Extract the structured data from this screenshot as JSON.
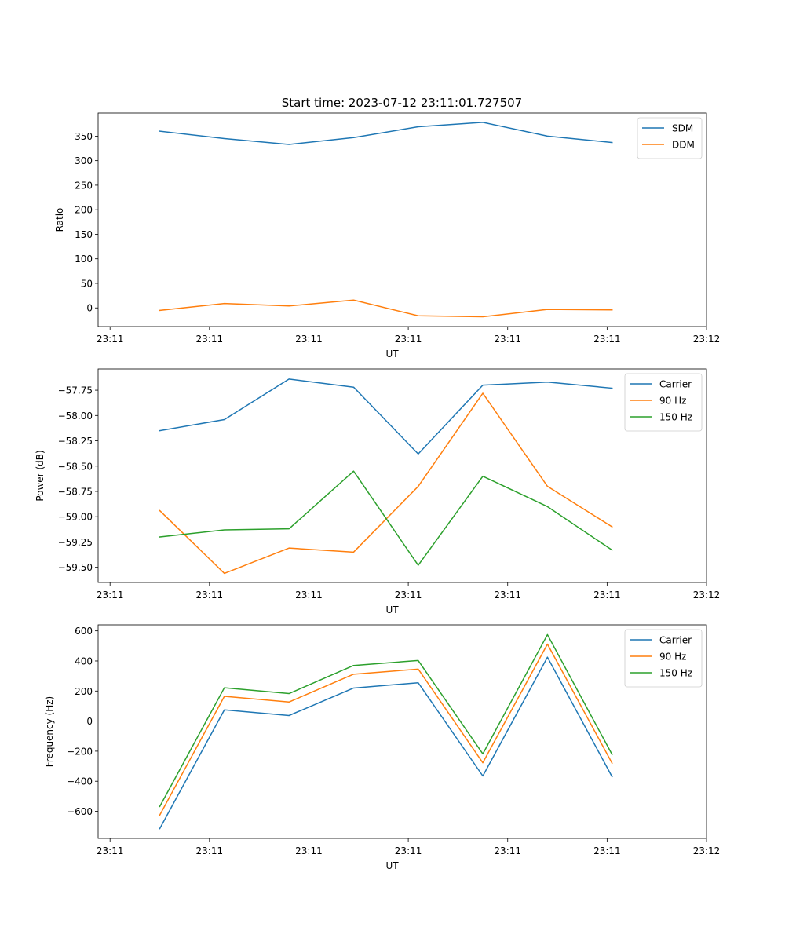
{
  "figure_title": "Start time: 2023-07-12 23:11:01.727507",
  "chart_data": [
    {
      "type": "line",
      "title": "Start time: 2023-07-12 23:11:01.727507",
      "xlabel": "UT",
      "ylabel": "Ratio",
      "x": [
        0.5,
        1.15,
        1.8,
        2.45,
        3.1,
        3.75,
        4.4,
        5.05
      ],
      "xlim": [
        -0.12,
        6.0
      ],
      "xticks": [
        0,
        1,
        2,
        3,
        4,
        5,
        6
      ],
      "xtick_labels": [
        "23:11",
        "23:11",
        "23:11",
        "23:11",
        "23:11",
        "23:11",
        "23:12"
      ],
      "ylim": [
        -38,
        397
      ],
      "yticks": [
        0,
        50,
        100,
        150,
        200,
        250,
        300,
        350
      ],
      "ytick_labels": [
        "0",
        "50",
        "100",
        "150",
        "200",
        "250",
        "300",
        "350"
      ],
      "legend": "top-right",
      "series": [
        {
          "name": "SDM",
          "color": "#1f77b4",
          "values": [
            360,
            345,
            333,
            347,
            369,
            378,
            350,
            337
          ]
        },
        {
          "name": "DDM",
          "color": "#ff7f0e",
          "values": [
            -5,
            9,
            4,
            16,
            -16,
            -18,
            -3,
            -4
          ]
        }
      ]
    },
    {
      "type": "line",
      "title": "",
      "xlabel": "UT",
      "ylabel": "Power (dB)",
      "x": [
        0.5,
        1.15,
        1.8,
        2.45,
        3.1,
        3.75,
        4.4,
        5.05
      ],
      "xlim": [
        -0.12,
        6.0
      ],
      "xticks": [
        0,
        1,
        2,
        3,
        4,
        5,
        6
      ],
      "xtick_labels": [
        "23:11",
        "23:11",
        "23:11",
        "23:11",
        "23:11",
        "23:11",
        "23:12"
      ],
      "ylim": [
        -59.65,
        -57.54
      ],
      "yticks": [
        -59.5,
        -59.25,
        -59.0,
        -58.75,
        -58.5,
        -58.25,
        -58.0,
        -57.75
      ],
      "ytick_labels": [
        "−59.50",
        "−59.25",
        "−59.00",
        "−58.75",
        "−58.50",
        "−58.25",
        "−58.00",
        "−57.75"
      ],
      "legend": "top-right",
      "series": [
        {
          "name": "Carrier",
          "color": "#1f77b4",
          "values": [
            -58.15,
            -58.04,
            -57.64,
            -57.72,
            -58.38,
            -57.7,
            -57.67,
            -57.73
          ]
        },
        {
          "name": "90 Hz",
          "color": "#ff7f0e",
          "values": [
            -58.94,
            -59.56,
            -59.31,
            -59.35,
            -58.7,
            -57.78,
            -58.7,
            -59.1
          ]
        },
        {
          "name": "150 Hz",
          "color": "#2ca02c",
          "values": [
            -59.2,
            -59.13,
            -59.12,
            -58.55,
            -59.48,
            -58.6,
            -58.9,
            -59.33
          ]
        }
      ]
    },
    {
      "type": "line",
      "title": "",
      "xlabel": "UT",
      "ylabel": "Frequency (Hz)",
      "x": [
        0.5,
        1.15,
        1.8,
        2.45,
        3.1,
        3.75,
        4.4,
        5.05
      ],
      "xlim": [
        -0.12,
        6.0
      ],
      "xticks": [
        0,
        1,
        2,
        3,
        4,
        5,
        6
      ],
      "xtick_labels": [
        "23:11",
        "23:11",
        "23:11",
        "23:11",
        "23:11",
        "23:11",
        "23:12"
      ],
      "ylim": [
        -780,
        640
      ],
      "yticks": [
        -600,
        -400,
        -200,
        0,
        200,
        400,
        600
      ],
      "ytick_labels": [
        "−600",
        "−400",
        "−200",
        "0",
        "200",
        "400",
        "600"
      ],
      "legend": "top-right",
      "series": [
        {
          "name": "Carrier",
          "color": "#1f77b4",
          "values": [
            -715,
            75,
            37,
            220,
            255,
            -365,
            425,
            -370
          ]
        },
        {
          "name": "90 Hz",
          "color": "#ff7f0e",
          "values": [
            -625,
            165,
            127,
            312,
            346,
            -277,
            512,
            -280
          ]
        },
        {
          "name": "150 Hz",
          "color": "#2ca02c",
          "values": [
            -568,
            222,
            183,
            370,
            403,
            -218,
            575,
            -222
          ]
        }
      ]
    }
  ]
}
